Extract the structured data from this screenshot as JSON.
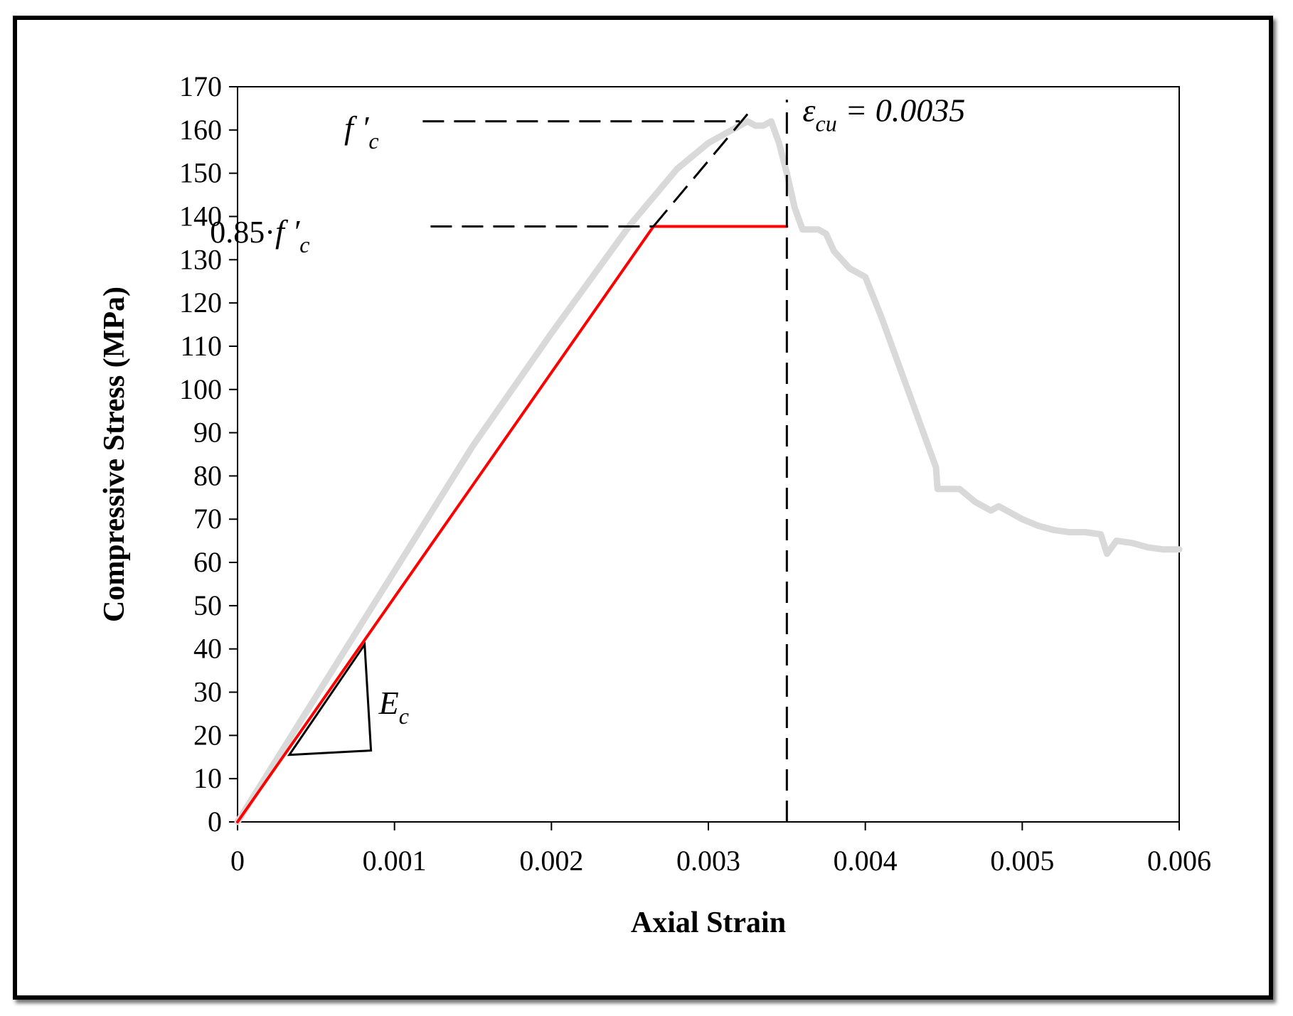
{
  "chart_data": {
    "type": "line",
    "xlabel": "Axial Strain",
    "ylabel": "Compressive Stress (MPa)",
    "xlim": [
      0,
      0.006
    ],
    "ylim": [
      0,
      170
    ],
    "x_ticks": [
      "0",
      "0.001",
      "0.002",
      "0.003",
      "0.004",
      "0.005",
      "0.006"
    ],
    "x_tick_values": [
      0,
      0.001,
      0.002,
      0.003,
      0.004,
      0.005,
      0.006
    ],
    "y_ticks": [
      "0",
      "10",
      "20",
      "30",
      "40",
      "50",
      "60",
      "70",
      "80",
      "90",
      "100",
      "110",
      "120",
      "130",
      "140",
      "150",
      "160",
      "170"
    ],
    "y_tick_values": [
      0,
      10,
      20,
      30,
      40,
      50,
      60,
      70,
      80,
      90,
      100,
      110,
      120,
      130,
      140,
      150,
      160,
      170
    ],
    "grid": false,
    "legend": "none",
    "series": [
      {
        "style": "experimental",
        "color": "#d9d9d9",
        "x": [
          0,
          0.0005,
          0.001,
          0.0015,
          0.002,
          0.0025,
          0.0028,
          0.003,
          0.0032,
          0.00325,
          0.0033,
          0.00335,
          0.0034,
          0.00345,
          0.0035,
          0.00355,
          0.0036,
          0.0037,
          0.00375,
          0.0038,
          0.00385,
          0.0039,
          0.004,
          0.0041,
          0.0042,
          0.0043,
          0.0044,
          0.00445,
          0.00446,
          0.0045,
          0.0046,
          0.0047,
          0.0048,
          0.00485,
          0.0049,
          0.005,
          0.0051,
          0.0052,
          0.0053,
          0.0054,
          0.0055,
          0.00554,
          0.0056,
          0.0057,
          0.0058,
          0.0059,
          0.006
        ],
        "y": [
          0,
          29,
          58,
          87,
          113,
          138,
          151,
          157,
          161,
          162,
          161,
          161,
          162,
          157,
          150,
          142,
          137,
          137,
          136,
          132,
          130,
          128,
          126,
          117,
          107,
          97,
          87,
          82,
          77,
          77,
          77,
          74,
          72,
          73,
          72,
          70,
          68.5,
          67.5,
          67,
          67,
          66.5,
          62,
          65,
          64.5,
          63.5,
          63,
          63
        ]
      },
      {
        "style": "idealized",
        "color": "#ff0000",
        "x": [
          0,
          0.00265,
          0.0035
        ],
        "y": [
          0,
          137.7,
          137.7
        ]
      }
    ],
    "reference_lines": [
      {
        "style": "dashed",
        "color": "#000000",
        "x": [
          0.00265,
          0.00328
        ],
        "y": [
          137.7,
          165
        ]
      },
      {
        "style": "dashed",
        "color": "#000000",
        "x": [
          0.00118,
          0.0032
        ],
        "y": [
          162,
          162
        ]
      },
      {
        "style": "dashed",
        "color": "#000000",
        "x": [
          0.00123,
          0.00265
        ],
        "y": [
          137.7,
          137.7
        ]
      },
      {
        "style": "dashed",
        "color": "#000000",
        "x": [
          0.0035,
          0.0035
        ],
        "y": [
          0,
          167
        ]
      }
    ],
    "slope_triangle": {
      "color": "#000000",
      "x": [
        0.00033,
        0.00081,
        0.00085,
        0.00033
      ],
      "y": [
        15.5,
        41,
        16.5,
        15.5
      ]
    },
    "annotations": [
      {
        "id": "fc",
        "main": "f ′",
        "sub": "c",
        "x": 0.0009,
        "y": 158
      },
      {
        "id": "fc085",
        "prefix": "0.85·",
        "main": "f ′",
        "sub": "c",
        "x": 0.00046,
        "y": 134
      },
      {
        "id": "ecu",
        "main": "ε",
        "sub": "cu",
        "rest": " = 0.0035",
        "x": 0.0036,
        "y": 162
      },
      {
        "id": "ec",
        "main": "E",
        "sub": "c",
        "x": 0.0009,
        "y": 25
      }
    ]
  }
}
